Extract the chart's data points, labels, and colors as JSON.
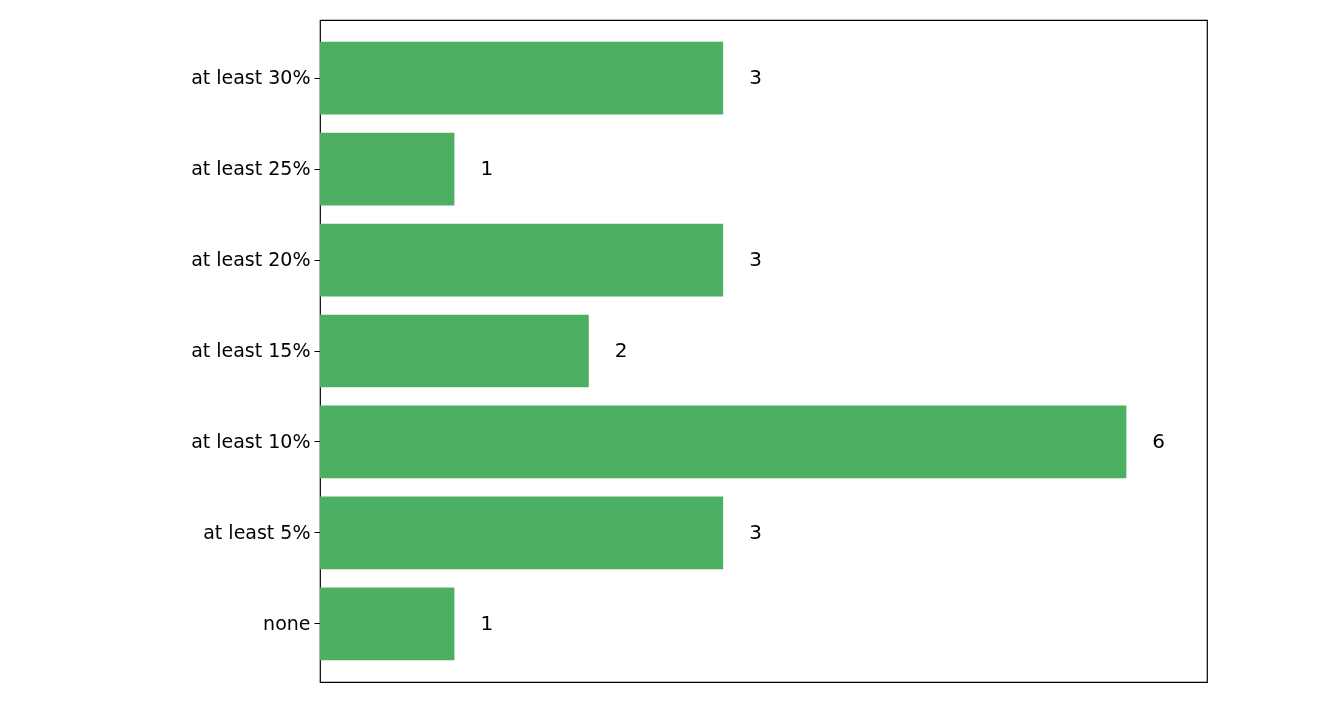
{
  "chart_data": {
    "type": "bar",
    "orientation": "horizontal",
    "categories": [
      "at least 30%",
      "at least 25%",
      "at least 20%",
      "at least 15%",
      "at least 10%",
      "at least 5%",
      "none"
    ],
    "values": [
      3,
      1,
      3,
      2,
      6,
      3,
      1
    ],
    "color": "#4daf62",
    "data_labels": true,
    "xlim": [
      0,
      6.6
    ],
    "tick_labels": "y",
    "grid": false
  }
}
